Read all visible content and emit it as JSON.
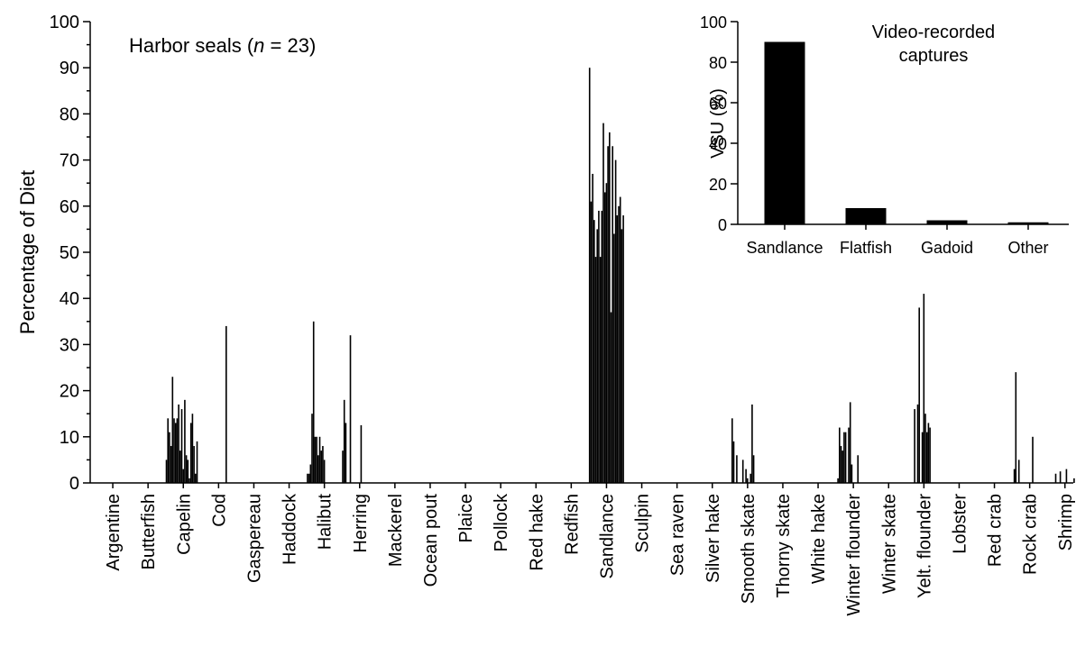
{
  "chart_data": [
    {
      "type": "bar",
      "annotation": [
        "Harbor seals (",
        "n",
        " = 23)"
      ],
      "y_label": "Percentage of Diet",
      "categories": [
        "Argentine",
        "Butterfish",
        "Capelin",
        "Cod",
        "Gaspereau",
        "Haddock",
        "Halibut",
        "Herring",
        "Mackerel",
        "Ocean pout",
        "Plaice",
        "Pollock",
        "Red hake",
        "Redfish",
        "Sandlance",
        "Sculpin",
        "Sea raven",
        "Silver hake",
        "Smooth skate",
        "Thorny skate",
        "White hake",
        "Winter flounder",
        "Winter skate",
        "Yelt. flounder",
        "Lobster",
        "Red crab",
        "Rock crab",
        "Shrimp"
      ],
      "values": [
        [
          0,
          0,
          0,
          0,
          0,
          0,
          0,
          0,
          0,
          0,
          0,
          0,
          0,
          0,
          0,
          0,
          0,
          0,
          0,
          0,
          0,
          0,
          0
        ],
        [
          0,
          0,
          0,
          0,
          0,
          0,
          0,
          0,
          0,
          0,
          0,
          0,
          0,
          0,
          0,
          0,
          0,
          0,
          0,
          0,
          0,
          0,
          0
        ],
        [
          5,
          14,
          11,
          8,
          23,
          14,
          13,
          14,
          17,
          7,
          16,
          3,
          18,
          6,
          5,
          1,
          13,
          15,
          8,
          2,
          9,
          0,
          0
        ],
        [
          0,
          0,
          0,
          0,
          0,
          0,
          0,
          0,
          0,
          0,
          0,
          0,
          0,
          0,
          0,
          0,
          34,
          0,
          0,
          0,
          0,
          0,
          0
        ],
        [
          0,
          0,
          0,
          0,
          0,
          0,
          0,
          0,
          0,
          0,
          0,
          0,
          0,
          0,
          0,
          0,
          0,
          0,
          0,
          0,
          0,
          0,
          0
        ],
        [
          0,
          0,
          0,
          0,
          0,
          0,
          0,
          0,
          0,
          0,
          0,
          0,
          0,
          0,
          0,
          0,
          0,
          0,
          0,
          0,
          0,
          0,
          0
        ],
        [
          2,
          2,
          4,
          15,
          35,
          10,
          10,
          6,
          10,
          7,
          8,
          5,
          0,
          0,
          0,
          0,
          0,
          0,
          0,
          0,
          0,
          0,
          0
        ],
        [
          7,
          18,
          13,
          0,
          0,
          32,
          0,
          0,
          0,
          0,
          0,
          0,
          12.5,
          0,
          0,
          0,
          0,
          0,
          0,
          0,
          0,
          0,
          0
        ],
        [
          0,
          0,
          0,
          0,
          0,
          0,
          0,
          0,
          0,
          0,
          0,
          0,
          0,
          0,
          0,
          0,
          0,
          0,
          0,
          0,
          0,
          0,
          0
        ],
        [
          0,
          0,
          0,
          0,
          0,
          0,
          0,
          0,
          0,
          0,
          0,
          0,
          0,
          0,
          0,
          0,
          0,
          0,
          0,
          0,
          0,
          0,
          0
        ],
        [
          0,
          0,
          0,
          0,
          0,
          0,
          0,
          0,
          0,
          0,
          0,
          0,
          0,
          0,
          0,
          0,
          0,
          0,
          0,
          0,
          0,
          0,
          0
        ],
        [
          0,
          0,
          0,
          0,
          0,
          0,
          0,
          0,
          0,
          0,
          0,
          0,
          0,
          0,
          0,
          0,
          0,
          0,
          0,
          0,
          0,
          0,
          0
        ],
        [
          0,
          0,
          0,
          0,
          0,
          0,
          0,
          0,
          0,
          0,
          0,
          0,
          0,
          0,
          0,
          0,
          0,
          0,
          0,
          0,
          0,
          0,
          0
        ],
        [
          0,
          0,
          0,
          0,
          0,
          0,
          0,
          0,
          0,
          0,
          0,
          0,
          0,
          0,
          0,
          0,
          0,
          0,
          0,
          0,
          0,
          0,
          0
        ],
        [
          90,
          61,
          67,
          57,
          49,
          55,
          59,
          49,
          59,
          78,
          63,
          65,
          73,
          76,
          37,
          73,
          54,
          70,
          58,
          60,
          62,
          55,
          58
        ],
        [
          0,
          0,
          0,
          0,
          0,
          0,
          0,
          0,
          0,
          0,
          0,
          0,
          0,
          0,
          0,
          0,
          0,
          0,
          0,
          0,
          0,
          0,
          0
        ],
        [
          0,
          0,
          0,
          0,
          0,
          0,
          0,
          0,
          0,
          0,
          0,
          0,
          0,
          0,
          0,
          0,
          0,
          0,
          0,
          0,
          0,
          0,
          0
        ],
        [
          0,
          0,
          0,
          0,
          0,
          0,
          0,
          0,
          0,
          0,
          0,
          0,
          0,
          0,
          0,
          0,
          0,
          0,
          0,
          0,
          0,
          0,
          0
        ],
        [
          0,
          14,
          9,
          0,
          6,
          0,
          0,
          0,
          5,
          0,
          3,
          1,
          0,
          2,
          17,
          6,
          0,
          0,
          0,
          0,
          0,
          0,
          0
        ],
        [
          0,
          0,
          0,
          0,
          0,
          0,
          0,
          0,
          0,
          0,
          0,
          0,
          0,
          0,
          0,
          0,
          0,
          0,
          0,
          0,
          0,
          0,
          0
        ],
        [
          0,
          0,
          0,
          0,
          0,
          0,
          0,
          0,
          0,
          0,
          0,
          0,
          0,
          0,
          0,
          0,
          0,
          0,
          0,
          0,
          0,
          0,
          0
        ],
        [
          0,
          1,
          12,
          8,
          7,
          11,
          11,
          0,
          12,
          17.5,
          4,
          0,
          0,
          0,
          6,
          0,
          0,
          0,
          0,
          0,
          0,
          0,
          0
        ],
        [
          0,
          0,
          0,
          0,
          0,
          0,
          0,
          0,
          0,
          0,
          0,
          0,
          0,
          0,
          0,
          0,
          0,
          0,
          0,
          0,
          0,
          0,
          0
        ],
        [
          0,
          0,
          0,
          0,
          0,
          16,
          0,
          17,
          38,
          0,
          11,
          41,
          15,
          11,
          13,
          12,
          0,
          0,
          0,
          0,
          0,
          0,
          0
        ],
        [
          0,
          0,
          0,
          0,
          0,
          0,
          0,
          0,
          0,
          0,
          0,
          0,
          0,
          0,
          0,
          0,
          0,
          0,
          0,
          0,
          0,
          0,
          0
        ],
        [
          0,
          0,
          0,
          0,
          0,
          0,
          0,
          0,
          0,
          0,
          0,
          0,
          0,
          0,
          0,
          0,
          0,
          0,
          0,
          0,
          0,
          0,
          0
        ],
        [
          0,
          3,
          24,
          0,
          5,
          0,
          0,
          0,
          0,
          0,
          0,
          0,
          0,
          10,
          0,
          0,
          0,
          0,
          0,
          0,
          0,
          0,
          0
        ],
        [
          0,
          0,
          0,
          0,
          0,
          2,
          0,
          0,
          2.5,
          0,
          0,
          0,
          3,
          0,
          0,
          0,
          0,
          1,
          0,
          0,
          0,
          0,
          0
        ]
      ],
      "color": "#000000",
      "ylim": [
        0,
        100
      ],
      "yticks": [
        0,
        10,
        20,
        30,
        40,
        50,
        60,
        70,
        80,
        90,
        100
      ]
    },
    {
      "type": "bar",
      "title": [
        "Video-recorded",
        "captures"
      ],
      "y_label": "VSU (%)",
      "categories": [
        "Sandlance",
        "Flatfish",
        "Gadoid",
        "Other"
      ],
      "values": [
        90,
        8,
        2,
        1
      ],
      "color": "#000000",
      "ylim": [
        0,
        100
      ],
      "yticks": [
        0,
        20,
        40,
        60,
        80,
        100
      ]
    }
  ]
}
